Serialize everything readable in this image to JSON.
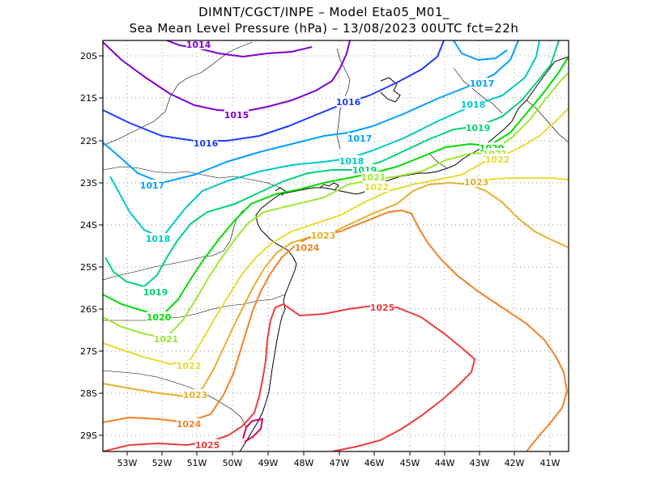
{
  "title_line1": "DIMNT/CGCT/INPE –  Model Eta05_M01_",
  "title_line2": "Sea Mean Level Pressure (hPa) – 13/08/2023 00UTC fct=22h",
  "lat_labels": [
    "20S",
    "21S",
    "22S",
    "23S",
    "24S",
    "25S",
    "26S",
    "27S",
    "28S",
    "29S"
  ],
  "lon_labels": [
    "53W",
    "52W",
    "51W",
    "50W",
    "49W",
    "48W",
    "47W",
    "46W",
    "45W",
    "44W",
    "43W",
    "42W",
    "41W"
  ],
  "isobars": [
    {
      "value": "1014",
      "color": "#8000d0"
    },
    {
      "value": "1015",
      "color": "#8000d0"
    },
    {
      "value": "1016",
      "color": "#1e3cff"
    },
    {
      "value": "1017",
      "color": "#00a0ff"
    },
    {
      "value": "1018",
      "color": "#00c8c8"
    },
    {
      "value": "1019",
      "color": "#00d27a"
    },
    {
      "value": "1020",
      "color": "#00dc00"
    },
    {
      "value": "1021",
      "color": "#a0e632"
    },
    {
      "value": "1022",
      "color": "#e6dc32"
    },
    {
      "value": "1023",
      "color": "#e6af2d"
    },
    {
      "value": "1024",
      "color": "#f08228"
    },
    {
      "value": "1025",
      "color": "#f03c3c"
    },
    {
      "value": "1026",
      "color": "#d2006e"
    }
  ],
  "contour_labels": [
    {
      "text": "1014",
      "color": "#8000d0"
    },
    {
      "text": "1015",
      "color": "#8000d0"
    },
    {
      "text": "1016",
      "color": "#1e3cff"
    },
    {
      "text": "1016",
      "color": "#1e3cff"
    },
    {
      "text": "1017",
      "color": "#00a0ff"
    },
    {
      "text": "1017",
      "color": "#00a0ff"
    },
    {
      "text": "1017",
      "color": "#00a0ff"
    },
    {
      "text": "1018",
      "color": "#00c8c8"
    },
    {
      "text": "1018",
      "color": "#00c8c8"
    },
    {
      "text": "1018",
      "color": "#00c8c8"
    },
    {
      "text": "1019",
      "color": "#00d27a"
    },
    {
      "text": "1019",
      "color": "#00d27a"
    },
    {
      "text": "1019",
      "color": "#00d27a"
    },
    {
      "text": "1020",
      "color": "#00dc00"
    },
    {
      "text": "1020",
      "color": "#00dc00"
    },
    {
      "text": "1021",
      "color": "#a0e632"
    },
    {
      "text": "1021",
      "color": "#a0e632"
    },
    {
      "text": "1021",
      "color": "#a0e632"
    },
    {
      "text": "1022",
      "color": "#e6dc32"
    },
    {
      "text": "1022",
      "color": "#e6dc32"
    },
    {
      "text": "1022",
      "color": "#e6dc32"
    },
    {
      "text": "1023",
      "color": "#e6af2d"
    },
    {
      "text": "1023",
      "color": "#e6af2d"
    },
    {
      "text": "1023",
      "color": "#e6af2d"
    },
    {
      "text": "1024",
      "color": "#f08228"
    },
    {
      "text": "1024",
      "color": "#f08228"
    },
    {
      "text": "1025",
      "color": "#f03c3c"
    },
    {
      "text": "1025",
      "color": "#f03c3c"
    }
  ]
}
